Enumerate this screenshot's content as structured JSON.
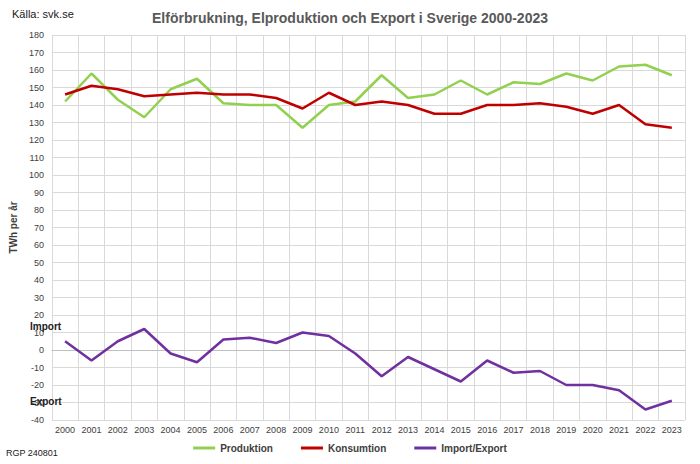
{
  "chart_data": {
    "type": "line",
    "title": "Elförbrukning, Elproduktion och Export i Sverige 2000-2023",
    "y_label": "TWh per år",
    "annotations": [
      "Källa: svk.se",
      "Import",
      "Export",
      "RGP 240801"
    ],
    "categories": [
      "2000",
      "2001",
      "2002",
      "2003",
      "2004",
      "2005",
      "2006",
      "2007",
      "2008",
      "2009",
      "2010",
      "2011",
      "2012",
      "2013",
      "2014",
      "2015",
      "2016",
      "2017",
      "2018",
      "2019",
      "2020",
      "2021",
      "2022",
      "2023"
    ],
    "series": [
      {
        "name": "Produktion",
        "color": "#92d050",
        "values": [
          142,
          158,
          143,
          133,
          149,
          155,
          141,
          140,
          140,
          127,
          140,
          142,
          157,
          144,
          146,
          154,
          146,
          153,
          152,
          158,
          154,
          162,
          163,
          157
        ]
      },
      {
        "name": "Konsumtion",
        "color": "#c00000",
        "values": [
          146,
          151,
          149,
          145,
          146,
          147,
          146,
          146,
          144,
          138,
          147,
          140,
          142,
          140,
          135,
          135,
          140,
          140,
          141,
          139,
          135,
          140,
          129,
          127
        ]
      },
      {
        "name": "Import/Export",
        "color": "#7030a0",
        "values": [
          5,
          -6,
          5,
          12,
          -2,
          -7,
          6,
          7,
          4,
          10,
          8,
          -2,
          -15,
          -4,
          -11,
          -18,
          -6,
          -13,
          -12,
          -20,
          -20,
          -23,
          -34,
          -29
        ]
      }
    ],
    "ylim": [
      -40,
      180
    ],
    "yticks": [
      -40,
      -30,
      -20,
      -10,
      0,
      10,
      20,
      30,
      40,
      50,
      60,
      70,
      80,
      90,
      100,
      110,
      120,
      130,
      140,
      150,
      160,
      170,
      180
    ],
    "grid": true,
    "legend": "bottom"
  }
}
